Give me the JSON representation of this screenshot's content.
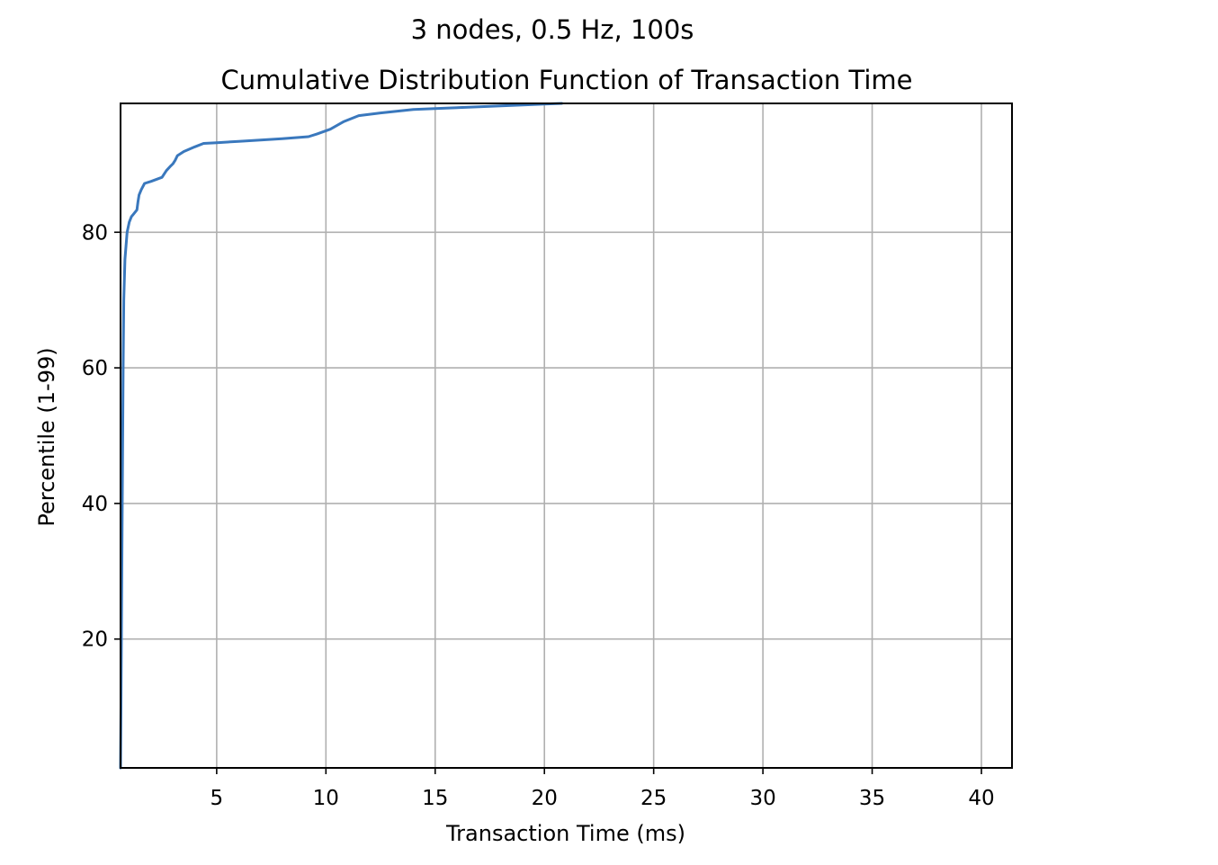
{
  "chart_data": {
    "type": "line",
    "suptitle": "3 nodes, 0.5 Hz, 100s",
    "title": "Cumulative Distribution Function of Transaction Time",
    "xlabel": "Transaction Time (ms)",
    "ylabel": "Percentile (1-99)",
    "xlim": [
      0.6,
      41.4
    ],
    "ylim": [
      1,
      99
    ],
    "xticks": [
      5,
      10,
      15,
      20,
      25,
      30,
      35,
      40
    ],
    "yticks": [
      20,
      40,
      60,
      80
    ],
    "grid": true,
    "line_color": "#3a78bd",
    "series": [
      {
        "x": [
          0.6,
          0.62,
          0.65,
          0.68,
          0.7,
          0.72,
          0.75,
          0.8,
          0.85,
          0.9,
          1.0,
          1.1,
          1.2,
          1.35,
          1.4,
          1.45,
          1.55,
          1.7,
          2.0,
          2.5,
          2.7,
          2.9,
          3.0,
          3.1,
          3.2,
          3.5,
          4.0,
          4.4,
          5.0,
          6.0,
          7.0,
          8.0,
          9.2,
          9.6,
          10.2,
          10.8,
          11.5,
          12.5,
          14.0,
          15.5,
          17.0,
          18.5,
          20.0,
          20.8
        ],
        "y": [
          1,
          10,
          25,
          40,
          50,
          60,
          70,
          76,
          78,
          80,
          81.5,
          82.3,
          82.7,
          83.3,
          84.5,
          85.5,
          86.3,
          87.2,
          87.5,
          88.1,
          89.1,
          89.8,
          90.1,
          90.6,
          91.3,
          91.9,
          92.6,
          93.1,
          93.2,
          93.4,
          93.6,
          93.8,
          94.1,
          94.5,
          95.2,
          96.3,
          97.2,
          97.6,
          98.1,
          98.3,
          98.5,
          98.7,
          98.9,
          99
        ]
      }
    ]
  }
}
